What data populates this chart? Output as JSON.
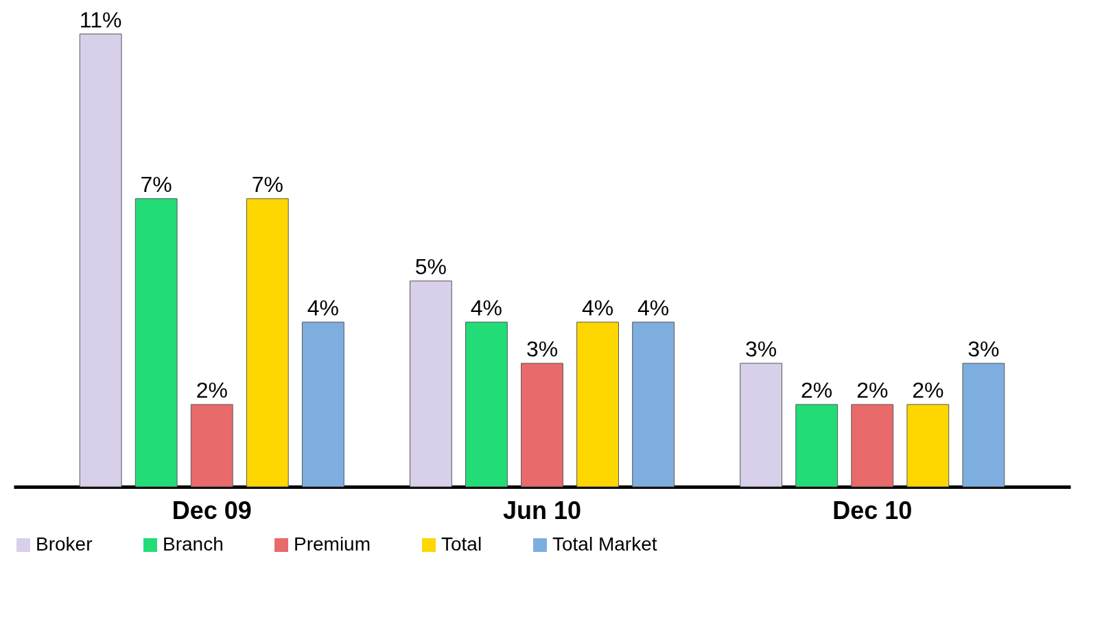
{
  "chart_data": {
    "type": "bar",
    "categories": [
      "Dec 09",
      "Jun 10",
      "Dec 10"
    ],
    "series": [
      {
        "name": "Broker",
        "color": "#d8d0ea",
        "values": [
          11,
          5,
          3
        ],
        "value_labels": [
          "11%",
          "5%",
          "3%"
        ]
      },
      {
        "name": "Branch",
        "color": "#22dd77",
        "values": [
          7,
          4,
          2
        ],
        "value_labels": [
          "7%",
          "4%",
          "2%"
        ]
      },
      {
        "name": "Premium",
        "color": "#e86a6a",
        "values": [
          2,
          3,
          2
        ],
        "value_labels": [
          "2%",
          "3%",
          "2%"
        ]
      },
      {
        "name": "Total",
        "color": "#ffd700",
        "values": [
          7,
          4,
          2
        ],
        "value_labels": [
          "7%",
          "4%",
          "2%"
        ]
      },
      {
        "name": "Total Market",
        "color": "#7eaee0",
        "values": [
          4,
          4,
          3
        ],
        "value_labels": [
          "4%",
          "4%",
          "3%"
        ]
      }
    ],
    "legend": "bottom",
    "grid": false
  }
}
